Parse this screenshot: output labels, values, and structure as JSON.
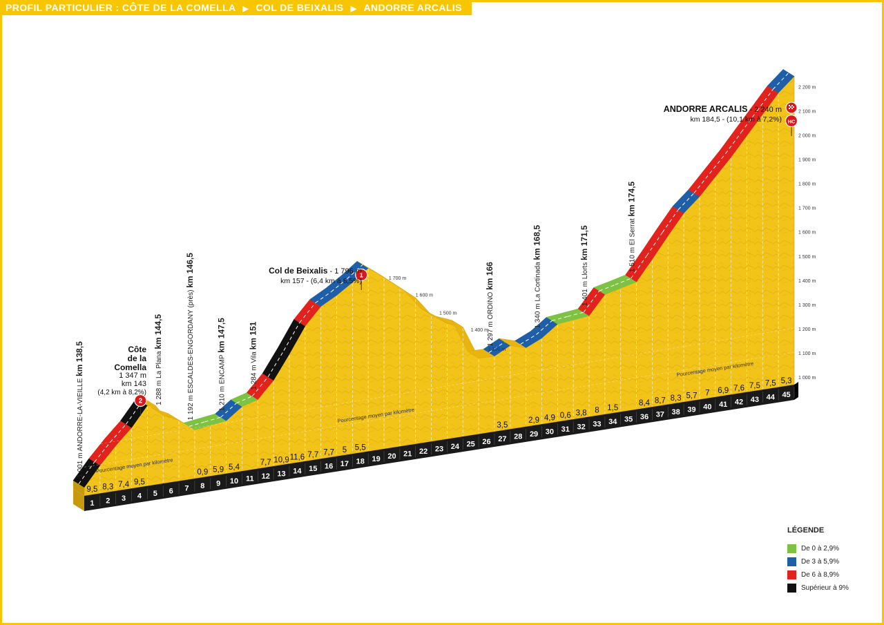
{
  "title": {
    "prefix": "PROFIL PARTICULIER :",
    "stages": [
      "CÔTE DE LA COMELLA",
      "COL DE BEIXALIS",
      "ANDORRE ARCALIS"
    ],
    "separator_glyph": "▶"
  },
  "legend": {
    "title": "LÉGENDE",
    "items": [
      {
        "label": "De 0 à 2,9%",
        "color": "#7dc242"
      },
      {
        "label": "De 3 à 5,9%",
        "color": "#1e5fa8"
      },
      {
        "label": "De 6 à 8,9%",
        "color": "#e2221c"
      },
      {
        "label": "Supérieur à 9%",
        "color": "#111111"
      }
    ]
  },
  "chart_data": {
    "type": "area",
    "title": "PROFIL PARTICULIER : CÔTE DE LA COMELLA ▶ COL DE BEIXALIS ▶ ANDORRE ARCALIS",
    "x_unit": "km",
    "y_unit": "m",
    "ylim": [
      1000,
      2200
    ],
    "altitude_ticks": [
      "1 000 m",
      "1 100 m",
      "1 200 m",
      "1 300 m",
      "1 400 m",
      "1 500 m",
      "1 600 m",
      "1 700 m",
      "1 800 m",
      "1 900 m",
      "2 000 m",
      "2 100 m",
      "2 200 m"
    ],
    "mid_ticks": [
      "1 700 m",
      "1 600 m",
      "1 500 m",
      "1 400 m",
      "1 300 m"
    ],
    "km_markers": [
      "1",
      "2",
      "3",
      "4",
      "5",
      "6",
      "7",
      "8",
      "9",
      "10",
      "11",
      "12",
      "13",
      "14",
      "15",
      "16",
      "17",
      "18",
      "19",
      "20",
      "21",
      "22",
      "23",
      "24",
      "25",
      "26",
      "27",
      "28",
      "29",
      "30",
      "31",
      "32",
      "33",
      "34",
      "35",
      "36",
      "37",
      "38",
      "39",
      "40",
      "41",
      "42",
      "43",
      "44",
      "45"
    ],
    "gradient_labels": [
      "9,5",
      "8,3",
      "7,4",
      "9,5",
      "",
      "",
      "",
      "0,9",
      "5,9",
      "5,4",
      "",
      "7,7",
      "10,9",
      "11,6",
      "7,7",
      "7,7",
      "5",
      "5,5",
      "",
      "",
      "",
      "",
      "",
      "",
      "",
      "",
      "3,5",
      "",
      "2,9",
      "4,9",
      "0,6",
      "3,8",
      "8",
      "1,5",
      "",
      "8,4",
      "8,7",
      "8,3",
      "5,7",
      "7",
      "6,9",
      "7,6",
      "7,5",
      "7,5",
      "5,3"
    ],
    "gradient_caption": "Pourcentage moyen par kilomètre",
    "elevation": [
      {
        "km": 0,
        "alt": 1001
      },
      {
        "km": 1,
        "alt": 1096
      },
      {
        "km": 2,
        "alt": 1179
      },
      {
        "km": 3,
        "alt": 1253
      },
      {
        "km": 4,
        "alt": 1347
      },
      {
        "km": 4.5,
        "alt": 1340
      },
      {
        "km": 5,
        "alt": 1288
      },
      {
        "km": 6,
        "alt": 1250
      },
      {
        "km": 7,
        "alt": 1192
      },
      {
        "km": 8,
        "alt": 1201
      },
      {
        "km": 9,
        "alt": 1210
      },
      {
        "km": 10,
        "alt": 1264
      },
      {
        "km": 11,
        "alt": 1284
      },
      {
        "km": 12,
        "alt": 1361
      },
      {
        "km": 13,
        "alt": 1470
      },
      {
        "km": 14,
        "alt": 1586
      },
      {
        "km": 15,
        "alt": 1663
      },
      {
        "km": 16,
        "alt": 1700
      },
      {
        "km": 17,
        "alt": 1745
      },
      {
        "km": 18,
        "alt": 1796
      },
      {
        "km": 19,
        "alt": 1740
      },
      {
        "km": 20,
        "alt": 1680
      },
      {
        "km": 21,
        "alt": 1620
      },
      {
        "km": 22,
        "alt": 1530
      },
      {
        "km": 23,
        "alt": 1480
      },
      {
        "km": 24,
        "alt": 1450
      },
      {
        "km": 25,
        "alt": 1300
      },
      {
        "km": 26,
        "alt": 1297
      },
      {
        "km": 27,
        "alt": 1332
      },
      {
        "km": 28,
        "alt": 1310
      },
      {
        "km": 29,
        "alt": 1340
      },
      {
        "km": 30,
        "alt": 1389
      },
      {
        "km": 31,
        "alt": 1395
      },
      {
        "km": 32,
        "alt": 1401
      },
      {
        "km": 33,
        "alt": 1481
      },
      {
        "km": 34,
        "alt": 1495
      },
      {
        "km": 35,
        "alt": 1510
      },
      {
        "km": 36,
        "alt": 1594
      },
      {
        "km": 37,
        "alt": 1681
      },
      {
        "km": 38,
        "alt": 1764
      },
      {
        "km": 39,
        "alt": 1821
      },
      {
        "km": 40,
        "alt": 1891
      },
      {
        "km": 41,
        "alt": 1960
      },
      {
        "km": 42,
        "alt": 2036
      },
      {
        "km": 43,
        "alt": 2111
      },
      {
        "km": 44,
        "alt": 2186
      },
      {
        "km": 45,
        "alt": 2240
      }
    ],
    "summits": [
      {
        "id": "comella",
        "name_lines": [
          "Côte",
          "de la",
          "Comella"
        ],
        "alt_line": "1 347 m",
        "km_line": "km 143",
        "detail_line": "(4,2 km à 8,2%)",
        "category": "2"
      },
      {
        "id": "beixalis",
        "name": "Col de Beixalis",
        "alt_suffix": " - 1 796 m",
        "km_line": "km 157 - (6,4 km à 8,5%)",
        "category": "1"
      },
      {
        "id": "arcalis",
        "name": "ANDORRE ARCALIS",
        "alt_suffix": " - 2 240 m",
        "km_line": "km 184,5 - (10,1 km à 7,2%)",
        "category": "HC"
      }
    ],
    "waypoints": [
      {
        "alt": "1 001 m",
        "place": "ANDORRE-LA-VIEILLE",
        "km": "km 138,5"
      },
      {
        "alt": "1 288 m",
        "place": "La Plana",
        "km": "km 144,5"
      },
      {
        "alt": "1 192 m",
        "place": "ESCALDES-ENGORDANY (près)",
        "km": "km 146,5"
      },
      {
        "alt": "1 210 m",
        "place": "ENCAMP",
        "km": "km 147,5"
      },
      {
        "alt": "1 284 m",
        "place": "Vila",
        "km": "km 151"
      },
      {
        "alt": "1 297 m",
        "place": "ORDINO",
        "km": "km 166"
      },
      {
        "alt": "1 340 m",
        "place": "La Cortinada",
        "km": "km 168,5"
      },
      {
        "alt": "1 401 m",
        "place": "Llorts",
        "km": "km 171,5"
      },
      {
        "alt": "1 510 m",
        "place": "El Serrat",
        "km": "km 174,5"
      }
    ],
    "colors": {
      "terrain": "#f2c318",
      "terrain_shadow": "#d9a80f",
      "side": "#c79a0e",
      "base": "#1a1a1a",
      "frame": "#f7c600"
    }
  }
}
